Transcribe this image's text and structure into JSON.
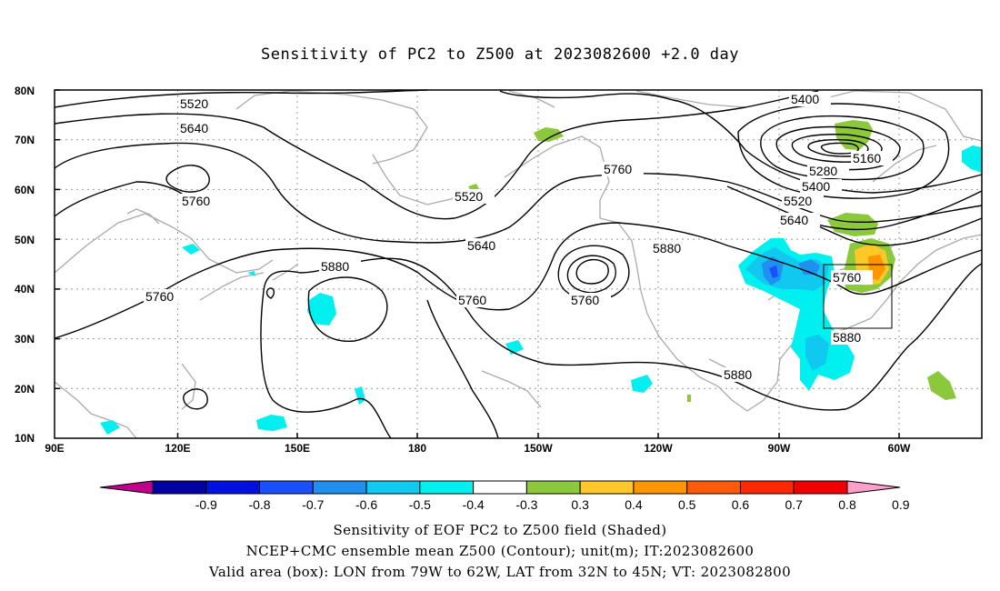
{
  "title": "Sensitivity of PC2 to Z500 at 2023082600 +2.0 day",
  "lat_labels": [
    "80N",
    "70N",
    "60N",
    "50N",
    "40N",
    "30N",
    "20N",
    "10N"
  ],
  "lon_labels": [
    "90E",
    "120E",
    "150E",
    "180",
    "150W",
    "120W",
    "90W",
    "60W"
  ],
  "contour_labels": {
    "c5520a": "5520",
    "c5640a": "5640",
    "c5760a": "5760",
    "c5760b": "5760",
    "c5520b": "5520",
    "c5640b": "5640",
    "c5880a": "5880",
    "c5760c": "5760",
    "c5760d": "5760",
    "c5760e": "5760",
    "c5880b": "5880",
    "c5880c": "5880",
    "c5880d": "5880",
    "c5400a": "5400",
    "c5160": "5160",
    "c5280": "5280",
    "c5400b": "5400",
    "c5520c": "5520",
    "c5640c": "5640",
    "c5760f": "5760"
  },
  "colorbar": {
    "labels": [
      "-0.9",
      "-0.8",
      "-0.7",
      "-0.6",
      "-0.5",
      "-0.4",
      "-0.3",
      "0.3",
      "0.4",
      "0.5",
      "0.6",
      "0.7",
      "0.8",
      "0.9"
    ],
    "colors": [
      "#c0008c",
      "#0000a0",
      "#0010e0",
      "#1a50ff",
      "#2090f0",
      "#10c8f0",
      "#00f0f0",
      "#ffffff",
      "#8cc83c",
      "#ffc828",
      "#ff9600",
      "#ff5a0a",
      "#ff2800",
      "#f00000",
      "#ffa0c8"
    ]
  },
  "valid_box": {
    "lon_from": "79W",
    "lon_to": "62W",
    "lat_from": "32N",
    "lat_to": "45N"
  },
  "caption": {
    "line1": "Sensitivity of EOF PC2 to Z500 field (Shaded)",
    "line2": "NCEP+CMC ensemble mean Z500 (Contour); unit(m); IT:2023082600",
    "line3": "Valid area (box): LON from 79W to 62W, LAT from 32N to 45N; VT: 2023082800"
  }
}
